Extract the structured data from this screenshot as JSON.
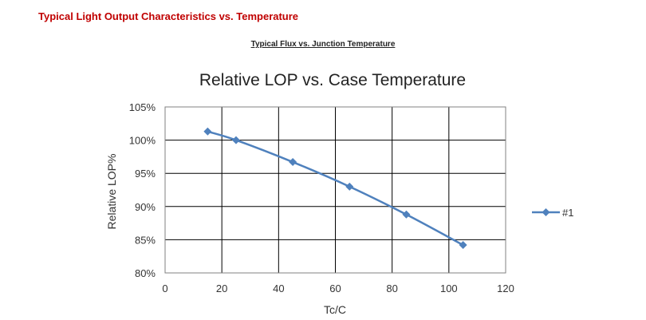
{
  "header": {
    "section_title": "Typical Light Output Characteristics vs. Temperature",
    "figure_caption": "Typical Flux vs. Junction Temperature"
  },
  "chart_data": {
    "type": "line",
    "title": "Relative LOP vs. Case Temperature",
    "xlabel": "Tc/C",
    "ylabel": "Relative LOP%",
    "xlim": [
      0,
      120
    ],
    "ylim": [
      80,
      105
    ],
    "x_ticks": [
      0,
      20,
      40,
      60,
      80,
      100,
      120
    ],
    "y_ticks": [
      80,
      85,
      90,
      95,
      100,
      105
    ],
    "y_tick_format": "percent",
    "grid": true,
    "legend_position": "right",
    "series": [
      {
        "name": "#1",
        "color": "#4f81bd",
        "marker": "diamond",
        "x": [
          15,
          25,
          45,
          65,
          85,
          105
        ],
        "y": [
          101.3,
          100.0,
          96.7,
          93.0,
          88.8,
          84.2
        ]
      }
    ]
  }
}
